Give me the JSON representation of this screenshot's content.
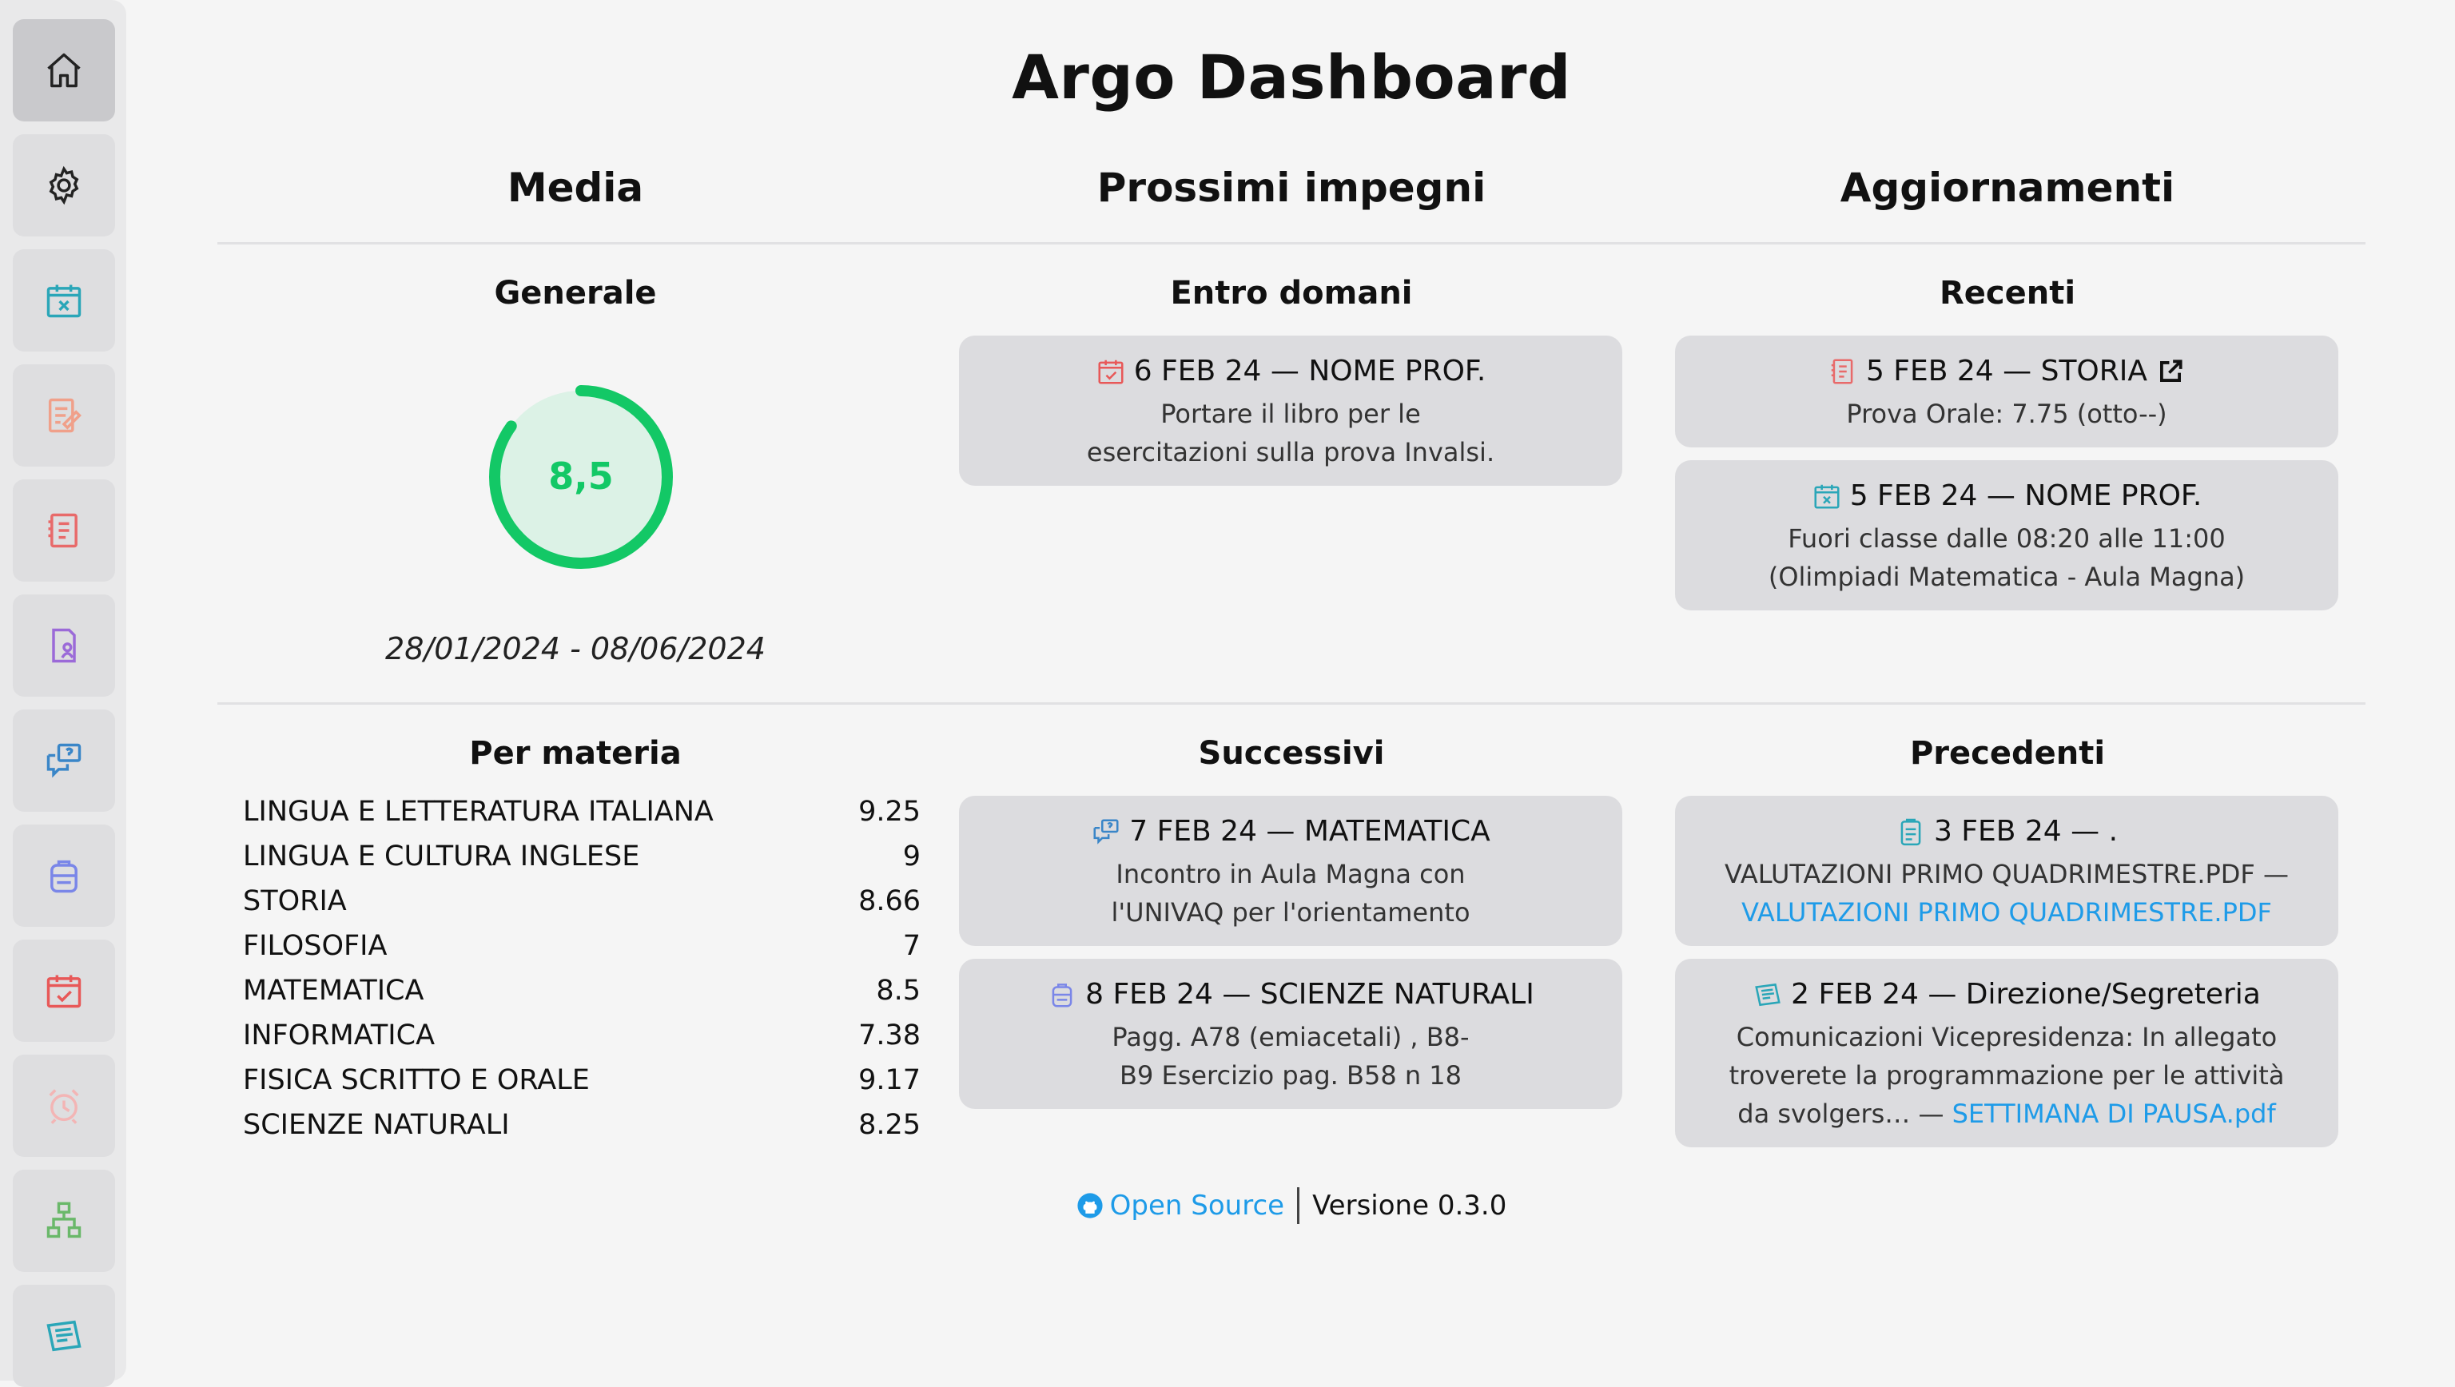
{
  "app_title": "Argo Dashboard",
  "sidebar": {
    "items": [
      {
        "icon": "home-icon",
        "color": "#222222"
      },
      {
        "icon": "gear-icon",
        "color": "#222222"
      },
      {
        "icon": "calendar-x-icon",
        "color": "#2aa6b8"
      },
      {
        "icon": "note-edit-icon",
        "color": "#f0a08a"
      },
      {
        "icon": "grades-book-icon",
        "color": "#e86a6a"
      },
      {
        "icon": "document-person-icon",
        "color": "#9b6ad8"
      },
      {
        "icon": "chat-question-icon",
        "color": "#3a86c8"
      },
      {
        "icon": "backpack-icon",
        "color": "#7a86e8"
      },
      {
        "icon": "calendar-check-icon",
        "color": "#e85858"
      },
      {
        "icon": "alarm-clock-icon",
        "color": "#f3b5b5"
      },
      {
        "icon": "org-chart-icon",
        "color": "#6ab86a"
      },
      {
        "icon": "notice-board-icon",
        "color": "#2aa6b8"
      }
    ]
  },
  "columns": {
    "media": "Media",
    "impegni": "Prossimi impegni",
    "aggiornamenti": "Aggiornamenti"
  },
  "media": {
    "general_label": "Generale",
    "average": "8,5",
    "average_fraction": 0.85,
    "date_range": "28/01/2024 - 08/06/2024",
    "per_subject_label": "Per materia",
    "subjects": [
      {
        "name": "LINGUA E LETTERATURA ITALIANA",
        "value": "9.25"
      },
      {
        "name": "LINGUA E CULTURA INGLESE",
        "value": "9"
      },
      {
        "name": "STORIA",
        "value": "8.66"
      },
      {
        "name": "FILOSOFIA",
        "value": "7"
      },
      {
        "name": "MATEMATICA",
        "value": "8.5"
      },
      {
        "name": "INFORMATICA",
        "value": "7.38"
      },
      {
        "name": "FISICA SCRITTO E ORALE",
        "value": "9.17"
      },
      {
        "name": "SCIENZE NATURALI",
        "value": "8.25"
      }
    ]
  },
  "impegni": {
    "entro_domani_label": "Entro domani",
    "entro_domani": [
      {
        "head": "6 FEB 24 — NOME PROF.",
        "line1": "Portare il libro per le",
        "line2": "esercitazioni sulla prova Invalsi."
      }
    ],
    "successivi_label": "Successivi",
    "successivi": [
      {
        "head": "7 FEB 24 — MATEMATICA",
        "line1": "Incontro in Aula Magna con",
        "line2": "l'UNIVAQ per l'orientamento"
      },
      {
        "head": "8 FEB 24 — SCIENZE NATURALI",
        "line1": "Pagg. A78 (emiacetali) , B8-",
        "line2": "B9 Esercizio pag. B58 n 18"
      }
    ]
  },
  "aggiornamenti": {
    "recenti_label": "Recenti",
    "recenti": [
      {
        "head": "5 FEB 24 — STORIA",
        "line1": "Prova Orale: 7.75 (otto--)"
      },
      {
        "head": "5 FEB 24 — NOME PROF.",
        "line1": "Fuori classe dalle 08:20 alle 11:00",
        "line2": "(Olimpiadi Matematica - Aula Magna)"
      }
    ],
    "precedenti_label": "Precedenti",
    "precedenti": [
      {
        "head": "3 FEB 24 — .",
        "line1": "VALUTAZIONI PRIMO QUADRIMESTRE.PDF —",
        "link1": "VALUTAZIONI PRIMO QUADRIMESTRE.PDF"
      },
      {
        "head": "2 FEB 24 — Direzione/Segreteria",
        "line1": "Comunicazioni Vicepresidenza: In allegato",
        "line2": "troverete la programmazione per le attività",
        "line3": "da svolgers… —",
        "link3": "SETTIMANA DI PAUSA.pdf"
      }
    ]
  },
  "footer": {
    "open_source": "Open Source",
    "version": "Versione 0.3.0"
  },
  "colors": {
    "accent": "#1e9be8",
    "gauge": "#13c866",
    "gauge_bg": "#dcf2e6"
  }
}
